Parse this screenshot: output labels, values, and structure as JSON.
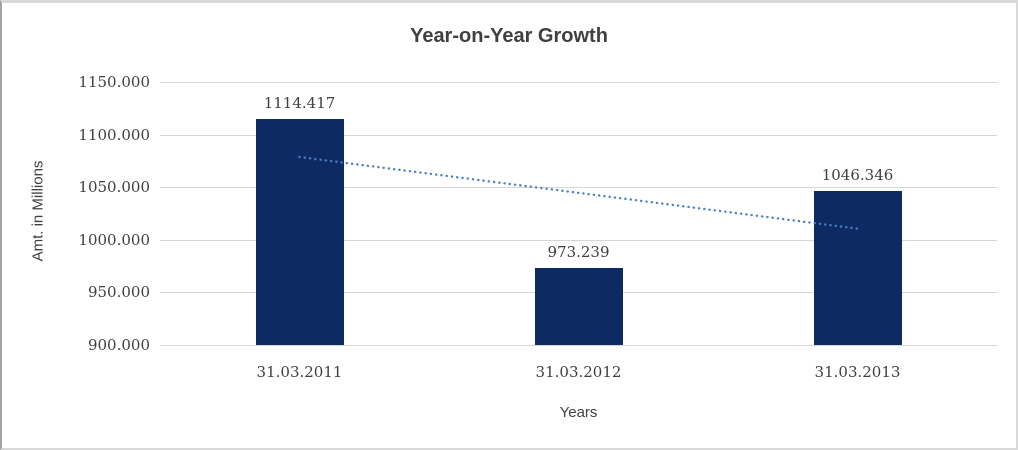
{
  "chart_data": {
    "type": "bar",
    "title": "Year-on-Year Growth",
    "xlabel": "Years",
    "ylabel": "Amt. in Millions",
    "categories": [
      "31.03.2011",
      "31.03.2012",
      "31.03.2013"
    ],
    "values": [
      1114.417,
      973.239,
      1046.346
    ],
    "data_labels": [
      "1114.417",
      "973.239",
      "1046.346"
    ],
    "ylim": [
      900,
      1150
    ],
    "yticks": [
      900,
      950,
      1000,
      1050,
      1100,
      1150
    ],
    "ytick_labels": [
      "900.000",
      "950.000",
      "1000.000",
      "1050.000",
      "1100.000",
      "1150.000"
    ],
    "grid": true,
    "legend": "none",
    "trendline": {
      "type": "linear",
      "style": "dotted",
      "start_value": 1078.7,
      "end_value": 1010.6,
      "color": "#4a7ec0"
    },
    "colors": {
      "bar": "#0e2a63",
      "gridline": "#d6d6d6",
      "title_text": "#404040",
      "tick_text": "#3f3f3f"
    }
  }
}
